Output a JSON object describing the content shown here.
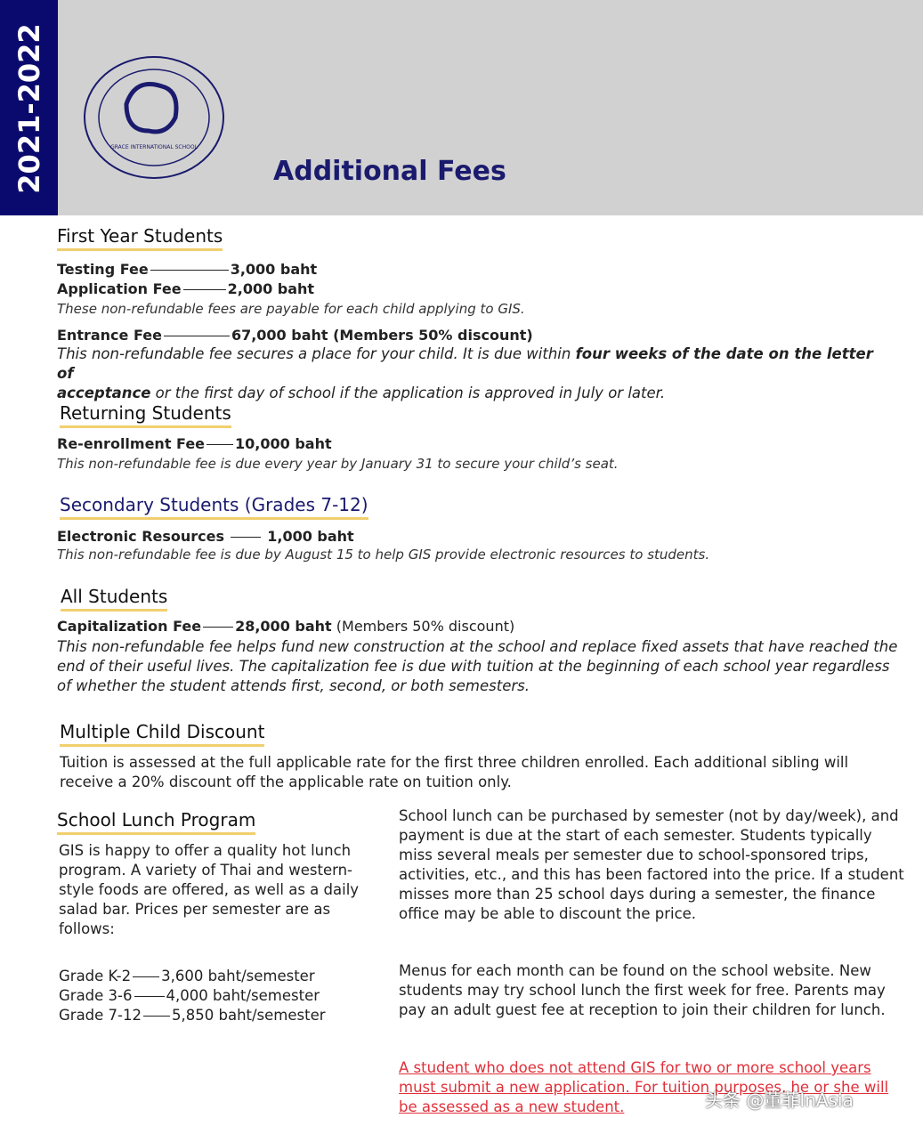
{
  "header": {
    "year": "2021-2022",
    "title": "Additional Fees",
    "logo_text": "GRACE INTERNATIONAL SCHOOL",
    "brand_color": "#0a0a6e"
  },
  "first_year": {
    "heading": "First Year Students",
    "testing_label": "Testing Fee",
    "testing_value": "3,000 baht",
    "application_label": "Application Fee",
    "application_value": "2,000 baht",
    "note1": "These non-refundable fees are payable for each child applying to GIS.",
    "entrance_label": "Entrance Fee",
    "entrance_value": "67,000 baht (Members 50% discount)",
    "note2a": "This non-refundable fee secures a place for your child. It is due within ",
    "note2b": "four weeks of the date on the letter of",
    "note2c": "acceptance",
    "note2d": " or the first day of school if the application is approved in July or later."
  },
  "returning": {
    "heading": "Returning Students",
    "label": "Re-enrollment Fee",
    "value": "10,000 baht",
    "note": "This non-refundable fee is due every year by January 31 to secure your child’s seat."
  },
  "secondary": {
    "heading": "Secondary Students (Grades 7-12)",
    "label": "Electronic Resources",
    "value": "1,000 baht",
    "note": "This non-refundable fee is due by August 15 to help GIS provide electronic resources to students."
  },
  "all": {
    "heading": "All Students",
    "label": "Capitalization Fee",
    "value": "28,000 baht",
    "value2": " (Members 50% discount)",
    "note": "This non-refundable fee helps fund new construction at the school and replace fixed assets that have reached the end of their useful lives. The capitalization fee is due with tuition at the beginning of each school year regardless of whether the student attends first, second, or both semesters."
  },
  "multiple": {
    "heading": "Multiple Child Discount",
    "text": "Tuition is assessed at the full applicable rate for the first three children enrolled. Each additional sibling will receive a 20% discount off the applicable rate on tuition only."
  },
  "lunch": {
    "heading": "School Lunch Program",
    "intro": "GIS is happy to offer a quality hot lunch program. A variety of Thai and western-style foods are offered, as well as a daily salad bar. Prices per semester are as follows:",
    "prices": [
      {
        "grade": "Grade K-2",
        "price": "3,600 baht/semester"
      },
      {
        "grade": "Grade 3-6",
        "price": "4,000 baht/semester"
      },
      {
        "grade": "Grade 7-12",
        "price": "5,850 baht/semester"
      }
    ],
    "right1": "School lunch can be purchased by semester (not by day/week), and payment is due at the start of each semester. Students typically miss several meals per semester due to school-sponsored trips, activities, etc., and this has been factored into the price. If a student misses more than 25 school days during a semester, the finance office may be able to discount the price.",
    "right2": "Menus for each month can be found on the school website. New students may try school lunch the first week for free. Parents may pay an adult guest fee at reception to join their children for lunch.",
    "red": "A student who does not attend GIS for two or more school years must submit a new application. For tuition purposes, he or she will be assessed as a new student."
  },
  "watermark": "头条 @董菲InAsia"
}
